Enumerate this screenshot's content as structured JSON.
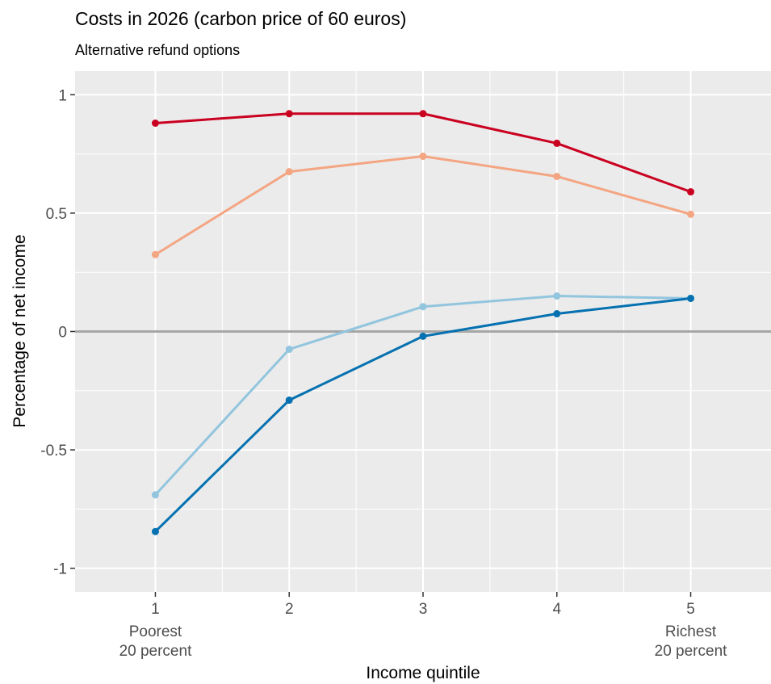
{
  "chart_data": {
    "type": "line",
    "title": "Costs in 2026 (carbon price of 60 euros)",
    "subtitle": "Alternative refund options",
    "xlabel": "Income quintile",
    "ylabel": "Percentage of net income",
    "x": [
      1,
      2,
      3,
      4,
      5
    ],
    "xlim": [
      0.4,
      5.6
    ],
    "ylim": [
      -1.1,
      1.1
    ],
    "x_ticks": [
      {
        "value": 1,
        "label": "1",
        "sublabel": [
          "Poorest",
          "20 percent"
        ]
      },
      {
        "value": 2,
        "label": "2",
        "sublabel": []
      },
      {
        "value": 3,
        "label": "3",
        "sublabel": []
      },
      {
        "value": 4,
        "label": "4",
        "sublabel": []
      },
      {
        "value": 5,
        "label": "5",
        "sublabel": [
          "Richest",
          "20 percent"
        ]
      }
    ],
    "y_ticks": [
      {
        "value": 1,
        "label": "1"
      },
      {
        "value": 0.5,
        "label": "0.5"
      },
      {
        "value": 0,
        "label": "0"
      },
      {
        "value": -0.5,
        "label": "-0.5"
      },
      {
        "value": -1,
        "label": "-1"
      }
    ],
    "y_minor_ticks": [
      0.75,
      0.25,
      -0.25,
      -0.75
    ],
    "reference_line": {
      "y": 0,
      "color": "#a6a6a6"
    },
    "grid": true,
    "legend": "none",
    "series": [
      {
        "color": "#ca0020",
        "values": [
          0.88,
          0.92,
          0.92,
          0.795,
          0.59
        ]
      },
      {
        "color": "#f4a582",
        "values": [
          0.325,
          0.675,
          0.74,
          0.655,
          0.495
        ]
      },
      {
        "color": "#92c5de",
        "values": [
          -0.69,
          -0.075,
          0.105,
          0.15,
          0.14
        ]
      },
      {
        "color": "#0571b0",
        "values": [
          -0.845,
          -0.29,
          -0.02,
          0.075,
          0.14
        ]
      }
    ],
    "panel_background": "#ebebeb",
    "grid_color": "#ffffff"
  }
}
